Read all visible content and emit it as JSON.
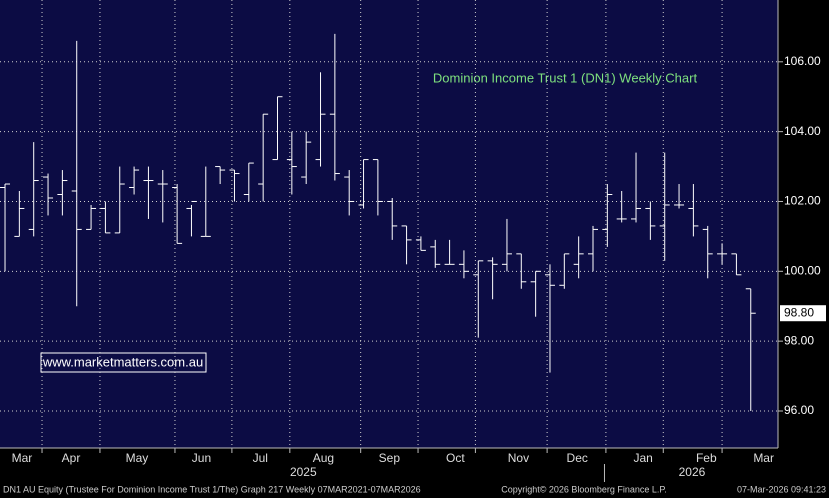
{
  "chart_data": {
    "type": "ohlc",
    "title": "Dominion Income Trust 1 (DN1) Weekly Chart",
    "watermark": "www.marketmatters.com.au",
    "footer_left": "DN1 AU Equity (Trustee For Dominion Income Trust 1/The) Graph 217 Weekly 07MAR2021-07MAR2026",
    "footer_center": "Copyright© 2026 Bloomberg Finance L.P.",
    "footer_right": "07-Mar-2026 09:41:23",
    "color": "#ffffff",
    "x": [
      0,
      1,
      2,
      3,
      4,
      5,
      6,
      7,
      8,
      9,
      10,
      11,
      12,
      13,
      14,
      15,
      16,
      17,
      18,
      19,
      20,
      21,
      22,
      23,
      24,
      25,
      26,
      27,
      28,
      29,
      30,
      31,
      32,
      33,
      34,
      35,
      36,
      37,
      38,
      39,
      40,
      41,
      42,
      43,
      44,
      45,
      46,
      47,
      48,
      49,
      50,
      51,
      52
    ],
    "open": [
      102.4,
      101.0,
      101.2,
      102.7,
      102.2,
      102.3,
      101.2,
      101.8,
      101.1,
      102.4,
      102.6,
      102.5,
      102.4,
      101.8,
      101.0,
      103.0,
      102.9,
      102.2,
      102.5,
      103.2,
      103.2,
      102.7,
      103.2,
      104.5,
      102.7,
      101.9,
      103.2,
      102.0,
      101.3,
      100.9,
      100.7,
      100.2,
      100.2,
      99.9,
      100.3,
      100.2,
      100.5,
      99.7,
      99.9,
      99.6,
      100.2,
      100.5,
      101.2,
      101.5,
      101.5,
      101.8,
      101.3,
      101.9,
      101.8,
      101.2,
      100.5,
      100.5,
      99.5
    ],
    "high": [
      102.5,
      102.3,
      103.7,
      102.8,
      102.9,
      106.6,
      101.9,
      102.0,
      103.0,
      103.0,
      103.0,
      102.9,
      102.5,
      101.9,
      103.0,
      103.0,
      102.9,
      103.1,
      104.5,
      105.0,
      104.0,
      104.0,
      105.7,
      106.8,
      102.9,
      103.2,
      103.2,
      102.1,
      101.3,
      101.0,
      100.9,
      100.9,
      100.6,
      100.3,
      100.4,
      101.5,
      100.5,
      100.0,
      100.2,
      100.5,
      101.0,
      101.3,
      102.5,
      102.3,
      103.4,
      102.0,
      103.4,
      102.5,
      102.5,
      101.3,
      100.8,
      100.5,
      99.5
    ],
    "low": [
      100.0,
      101.0,
      101.0,
      101.6,
      101.6,
      99.0,
      101.2,
      101.1,
      101.1,
      102.2,
      101.5,
      101.4,
      100.8,
      101.0,
      101.0,
      102.5,
      102.0,
      102.0,
      102.0,
      103.2,
      102.2,
      102.5,
      103.0,
      102.6,
      101.6,
      101.8,
      101.6,
      100.9,
      100.2,
      100.6,
      100.1,
      100.2,
      99.8,
      98.1,
      99.2,
      100.0,
      99.5,
      98.7,
      97.1,
      99.5,
      99.8,
      100.0,
      100.7,
      101.4,
      101.4,
      100.9,
      100.3,
      101.8,
      101.0,
      99.8,
      100.2,
      99.9,
      96.0
    ],
    "close": [
      102.5,
      101.8,
      102.6,
      102.1,
      102.6,
      101.2,
      101.8,
      101.1,
      102.5,
      102.9,
      102.6,
      102.5,
      100.8,
      102.0,
      101.0,
      102.9,
      102.8,
      103.1,
      104.5,
      105.0,
      103.0,
      103.7,
      104.5,
      102.8,
      102.0,
      103.2,
      102.0,
      101.3,
      100.9,
      100.6,
      100.2,
      100.2,
      100.0,
      100.3,
      100.2,
      100.5,
      99.7,
      100.0,
      99.6,
      100.5,
      100.5,
      101.2,
      102.2,
      101.5,
      101.8,
      101.3,
      101.9,
      101.9,
      101.3,
      100.5,
      100.5,
      99.9,
      98.8
    ],
    "xlim": [
      -0.35,
      53.9
    ],
    "ylim": [
      94.94,
      107.77
    ],
    "yticks": [
      {
        "value": 96,
        "label": "96.00"
      },
      {
        "value": 98,
        "label": "98.00"
      },
      {
        "value": 100,
        "label": "100.00"
      },
      {
        "value": 102,
        "label": "102.00"
      },
      {
        "value": 104,
        "label": "104.00"
      },
      {
        "value": 106,
        "label": "106.00"
      }
    ],
    "xticks": [
      {
        "value": 1.18,
        "label": "Mar"
      },
      {
        "value": 4.6,
        "label": "Apr"
      },
      {
        "value": 9.2,
        "label": "May"
      },
      {
        "value": 13.7,
        "label": "Jun"
      },
      {
        "value": 17.8,
        "label": "Jul"
      },
      {
        "value": 22.2,
        "label": "Aug"
      },
      {
        "value": 26.8,
        "label": "Sep"
      },
      {
        "value": 31.4,
        "label": "Oct"
      },
      {
        "value": 35.8,
        "label": "Nov"
      },
      {
        "value": 39.9,
        "label": "Dec"
      },
      {
        "value": 44.5,
        "label": "Jan"
      },
      {
        "value": 48.9,
        "label": "Feb"
      },
      {
        "value": 52.9,
        "label": "Mar"
      }
    ],
    "xgrid": [
      2.58,
      6.62,
      11.85,
      15.82,
      19.86,
      24.8,
      28.8,
      32.8,
      37.8,
      41.9,
      45.9,
      50.0
    ],
    "years": [
      {
        "value": 20.8,
        "label": "2025"
      },
      {
        "value": 47.9,
        "label": "2026"
      }
    ],
    "year_divider": 41.8,
    "last_price": {
      "value": 98.8,
      "label": "98.80"
    },
    "grid": true
  }
}
